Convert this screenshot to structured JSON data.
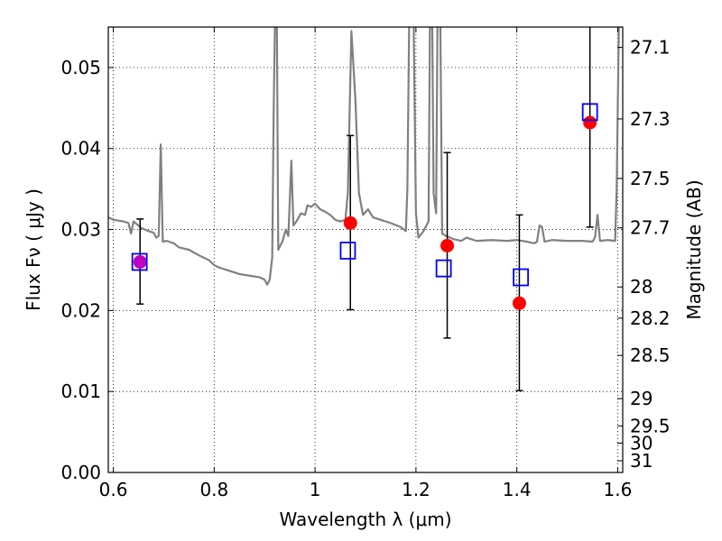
{
  "chart_data": {
    "type": "scatter",
    "xlabel": "Wavelength  λ (μm)",
    "ylabel": "Flux  Fν  ( μJy )",
    "y2label": "Magnitude (AB)",
    "xlim": [
      0.59,
      1.61
    ],
    "ylim": [
      0.0,
      0.055
    ],
    "x_ticks": [
      0.6,
      0.8,
      1.0,
      1.2,
      1.4,
      1.6
    ],
    "x_tick_labels": [
      "0.6",
      "0.8",
      "1",
      "1.2",
      "1.4",
      "1.6"
    ],
    "y_ticks": [
      0.0,
      0.01,
      0.02,
      0.03,
      0.04,
      0.05
    ],
    "y_tick_labels": [
      "0.00",
      "0.01",
      "0.02",
      "0.03",
      "0.04",
      "0.05"
    ],
    "mag_ticks": [
      27.1,
      27.3,
      27.5,
      27.7,
      28,
      28.2,
      28.5,
      29,
      29.5,
      30,
      31
    ],
    "mag_tick_labels": [
      "27.1",
      "27.3",
      "27.5",
      "27.7",
      "28",
      "28.2",
      "28.5",
      "29",
      "29.5",
      "30",
      "31"
    ],
    "grid": true,
    "colors": {
      "model": "#808080",
      "observed": "#ff0000",
      "model_flux": "#0000ff",
      "errorbar": "#000000",
      "first_point": "#c000c0"
    },
    "series": [
      {
        "kind": "line",
        "points": [
          [
            0.59,
            0.0315
          ],
          [
            0.6,
            0.0312
          ],
          [
            0.62,
            0.031
          ],
          [
            0.63,
            0.0308
          ],
          [
            0.635,
            0.0295
          ],
          [
            0.64,
            0.031
          ],
          [
            0.655,
            0.0302
          ],
          [
            0.67,
            0.0298
          ],
          [
            0.68,
            0.0296
          ],
          [
            0.685,
            0.029
          ],
          [
            0.69,
            0.0292
          ],
          [
            0.694,
            0.0405
          ],
          [
            0.698,
            0.0285
          ],
          [
            0.705,
            0.0286
          ],
          [
            0.72,
            0.0283
          ],
          [
            0.73,
            0.0278
          ],
          [
            0.75,
            0.0275
          ],
          [
            0.77,
            0.0268
          ],
          [
            0.79,
            0.0262
          ],
          [
            0.8,
            0.0256
          ],
          [
            0.81,
            0.0253
          ],
          [
            0.83,
            0.0249
          ],
          [
            0.85,
            0.0245
          ],
          [
            0.87,
            0.0243
          ],
          [
            0.89,
            0.0241
          ],
          [
            0.9,
            0.0238
          ],
          [
            0.905,
            0.0232
          ],
          [
            0.91,
            0.0238
          ],
          [
            0.915,
            0.0265
          ],
          [
            0.918,
            0.045
          ],
          [
            0.921,
            0.058
          ],
          [
            0.924,
            0.058
          ],
          [
            0.927,
            0.0275
          ],
          [
            0.935,
            0.0285
          ],
          [
            0.942,
            0.03
          ],
          [
            0.947,
            0.0292
          ],
          [
            0.953,
            0.0385
          ],
          [
            0.957,
            0.0305
          ],
          [
            0.963,
            0.031
          ],
          [
            0.972,
            0.032
          ],
          [
            0.98,
            0.0318
          ],
          [
            0.985,
            0.033
          ],
          [
            0.992,
            0.0328
          ],
          [
            1.0,
            0.0332
          ],
          [
            1.01,
            0.0325
          ],
          [
            1.02,
            0.0322
          ],
          [
            1.03,
            0.0318
          ],
          [
            1.04,
            0.0312
          ],
          [
            1.05,
            0.031
          ],
          [
            1.06,
            0.0312
          ],
          [
            1.065,
            0.0345
          ],
          [
            1.072,
            0.0545
          ],
          [
            1.08,
            0.046
          ],
          [
            1.087,
            0.0345
          ],
          [
            1.095,
            0.0318
          ],
          [
            1.105,
            0.0325
          ],
          [
            1.115,
            0.0315
          ],
          [
            1.13,
            0.0312
          ],
          [
            1.15,
            0.0308
          ],
          [
            1.17,
            0.0303
          ],
          [
            1.18,
            0.0298
          ],
          [
            1.183,
            0.035
          ],
          [
            1.187,
            0.058
          ],
          [
            1.195,
            0.058
          ],
          [
            1.2,
            0.032
          ],
          [
            1.205,
            0.029
          ],
          [
            1.215,
            0.0298
          ],
          [
            1.225,
            0.031
          ],
          [
            1.228,
            0.058
          ],
          [
            1.232,
            0.058
          ],
          [
            1.235,
            0.0345
          ],
          [
            1.24,
            0.032
          ],
          [
            1.243,
            0.058
          ],
          [
            1.248,
            0.058
          ],
          [
            1.252,
            0.0295
          ],
          [
            1.26,
            0.0292
          ],
          [
            1.275,
            0.0288
          ],
          [
            1.29,
            0.0286
          ],
          [
            1.3,
            0.029
          ],
          [
            1.32,
            0.0286
          ],
          [
            1.35,
            0.0287
          ],
          [
            1.38,
            0.0286
          ],
          [
            1.4,
            0.0287
          ],
          [
            1.42,
            0.0285
          ],
          [
            1.435,
            0.0283
          ],
          [
            1.44,
            0.0285
          ],
          [
            1.445,
            0.0305
          ],
          [
            1.45,
            0.0303
          ],
          [
            1.455,
            0.0285
          ],
          [
            1.47,
            0.0287
          ],
          [
            1.5,
            0.0286
          ],
          [
            1.53,
            0.0286
          ],
          [
            1.55,
            0.0285
          ],
          [
            1.555,
            0.029
          ],
          [
            1.56,
            0.0318
          ],
          [
            1.565,
            0.0286
          ],
          [
            1.58,
            0.0287
          ],
          [
            1.595,
            0.0286
          ],
          [
            1.598,
            0.035
          ],
          [
            1.603,
            0.058
          ],
          [
            1.61,
            0.058
          ]
        ]
      },
      {
        "kind": "points",
        "marker": "circle",
        "x": [
          0.653,
          1.07,
          1.262,
          1.405,
          1.545
        ],
        "y": [
          0.026,
          0.0308,
          0.028,
          0.0209,
          0.0432
        ],
        "yerr_lo": [
          0.0208,
          0.0201,
          0.0166,
          0.0101,
          0.0303
        ],
        "yerr_hi": [
          0.0313,
          0.0416,
          0.0395,
          0.0318,
          0.0555
        ]
      },
      {
        "kind": "points",
        "marker": "open-square",
        "x": [
          0.652,
          1.065,
          1.255,
          1.408,
          1.545
        ],
        "y": [
          0.026,
          0.0274,
          0.0252,
          0.0241,
          0.0445
        ]
      }
    ]
  }
}
